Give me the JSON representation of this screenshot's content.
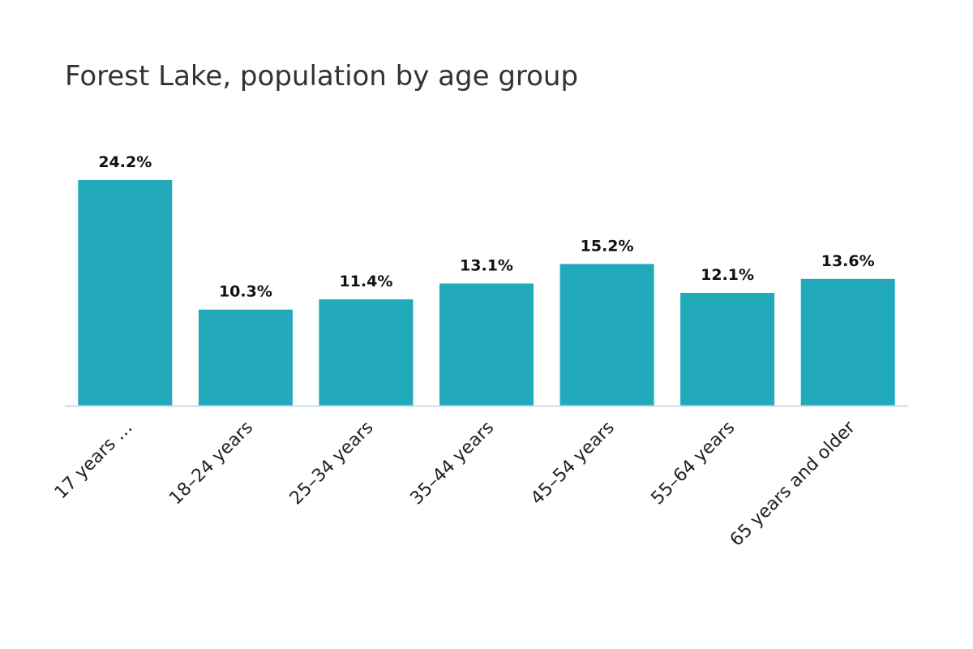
{
  "chart_data": {
    "type": "bar",
    "title": "Forest Lake, population by age group",
    "categories": [
      "17 years …",
      "18–24 years",
      "25–34 years",
      "35–44 years",
      "45–54 years",
      "55–64 years",
      "65 years and older"
    ],
    "values": [
      24.2,
      10.3,
      11.4,
      13.1,
      15.2,
      12.1,
      13.6
    ],
    "value_labels": [
      "24.2%",
      "10.3%",
      "11.4%",
      "13.1%",
      "15.2%",
      "12.1%",
      "13.6%"
    ],
    "xlabel": "",
    "ylabel": "",
    "ylim": [
      0,
      24.2
    ],
    "grid": false,
    "legend": "none",
    "bar_color": "#22aabb",
    "axis_color": "#ccd6eb"
  }
}
